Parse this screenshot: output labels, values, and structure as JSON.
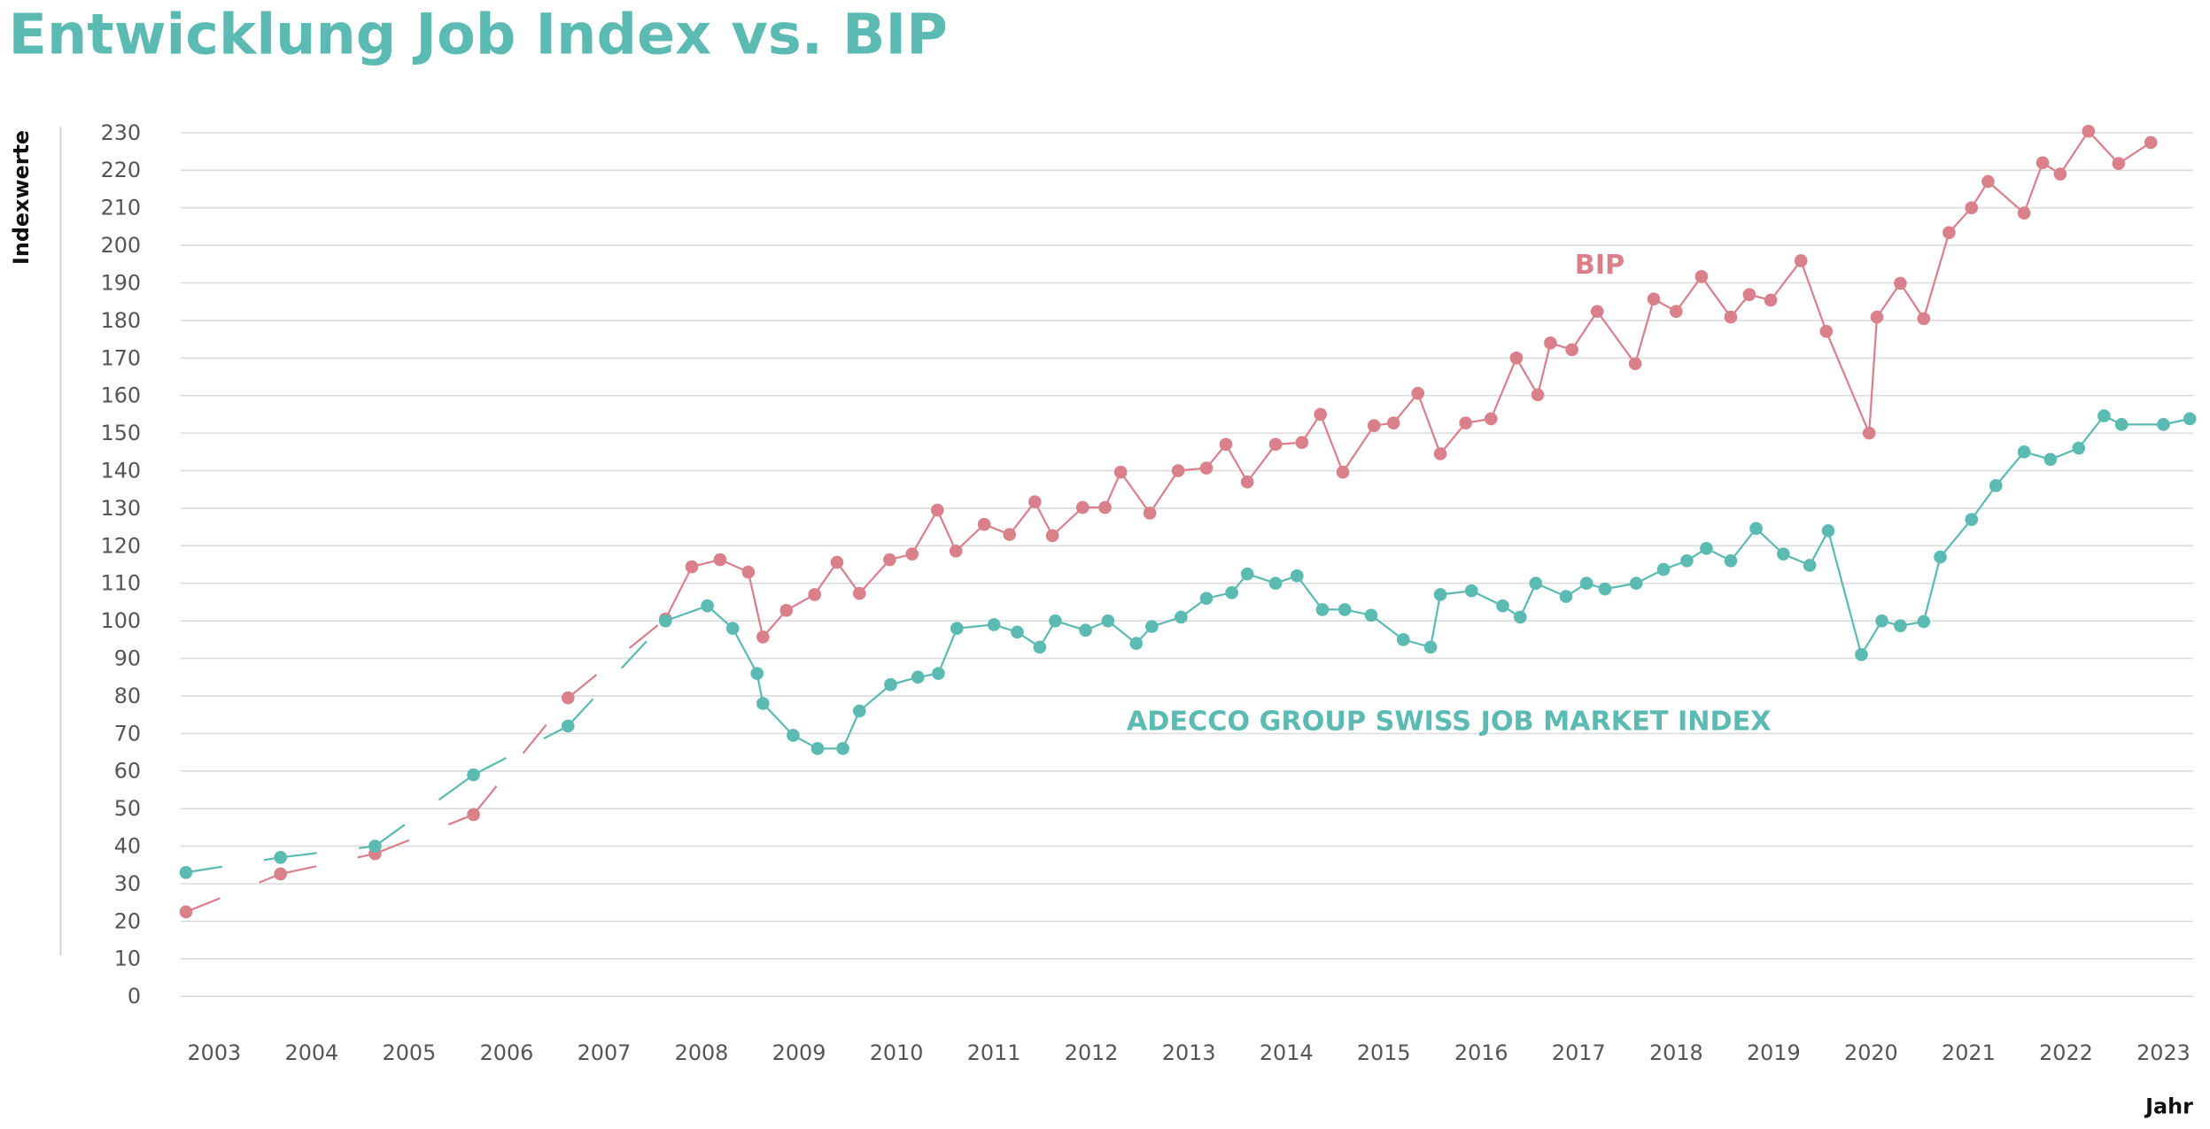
{
  "chart_data": {
    "type": "line",
    "title": "Entwicklung Job Index vs. BIP",
    "ylabel": "Indexwerte",
    "xlabel": "Jahr",
    "ylim": [
      0,
      230
    ],
    "yticks": [
      0,
      10,
      20,
      30,
      40,
      50,
      60,
      70,
      80,
      90,
      100,
      110,
      120,
      130,
      140,
      150,
      160,
      170,
      180,
      190,
      200,
      210,
      220,
      230
    ],
    "xticks": [
      "2003",
      "2004",
      "2005",
      "2006",
      "2007",
      "2008",
      "2009",
      "2010",
      "2011",
      "2012",
      "2013",
      "2014",
      "2015",
      "2016",
      "2017",
      "2018",
      "2019",
      "2020",
      "2021",
      "2022",
      "2023"
    ],
    "grid": true,
    "series": [
      {
        "name": "BIP",
        "color": "#d9808a",
        "dashed_until_year": 2007.63,
        "x": [
          2002.71,
          2003.68,
          2004.65,
          2005.66,
          2006.63,
          2007.63,
          2007.9,
          2008.19,
          2008.48,
          2008.63,
          2008.87,
          2009.16,
          2009.39,
          2009.62,
          2009.93,
          2010.16,
          2010.42,
          2010.61,
          2010.9,
          2011.16,
          2011.42,
          2011.6,
          2011.91,
          2012.14,
          2012.3,
          2012.6,
          2012.89,
          2013.18,
          2013.38,
          2013.6,
          2013.89,
          2014.16,
          2014.35,
          2014.58,
          2014.9,
          2015.1,
          2015.35,
          2015.58,
          2015.84,
          2016.1,
          2016.36,
          2016.58,
          2016.71,
          2016.93,
          2017.19,
          2017.58,
          2017.77,
          2018.0,
          2018.26,
          2018.56,
          2018.75,
          2018.97,
          2019.28,
          2019.54,
          2019.98,
          2020.06,
          2020.3,
          2020.54,
          2020.8,
          2021.03,
          2021.2,
          2021.57,
          2021.76,
          2021.94,
          2022.23,
          2022.54,
          2022.87
        ],
        "y": [
          22.5,
          32.6,
          38,
          48.4,
          79.5,
          100.5,
          114.4,
          116.3,
          113,
          95.7,
          102.8,
          107,
          115.6,
          107.3,
          116.3,
          117.8,
          129.5,
          118.6,
          125.7,
          123,
          131.7,
          122.7,
          130.2,
          130.2,
          139.6,
          128.7,
          140,
          140.7,
          147,
          137,
          147,
          147.5,
          155,
          139.6,
          152,
          152.7,
          160.6,
          144.5,
          152.7,
          153.8,
          170,
          160.2,
          174,
          172.2,
          182.4,
          168.5,
          185.7,
          182.4,
          191.7,
          180.9,
          186.9,
          185.4,
          195.9,
          177.1,
          150,
          180.9,
          189.9,
          180.5,
          203.4,
          210,
          217,
          208.6,
          222,
          219,
          230.4,
          221.8,
          227.4
        ]
      },
      {
        "name": "ADECCO GROUP SWISS JOB MARKET INDEX",
        "color": "#5bbab1",
        "dashed_until_year": 2007.63,
        "x": [
          2002.71,
          2003.68,
          2004.65,
          2005.66,
          2006.63,
          2007.63,
          2008.06,
          2008.32,
          2008.57,
          2008.63,
          2008.94,
          2009.19,
          2009.45,
          2009.62,
          2009.94,
          2010.22,
          2010.43,
          2010.62,
          2011.0,
          2011.24,
          2011.47,
          2011.63,
          2011.94,
          2012.17,
          2012.46,
          2012.62,
          2012.92,
          2013.18,
          2013.44,
          2013.6,
          2013.89,
          2014.11,
          2014.37,
          2014.6,
          2014.87,
          2015.2,
          2015.48,
          2015.58,
          2015.9,
          2016.22,
          2016.4,
          2016.56,
          2016.87,
          2017.08,
          2017.27,
          2017.59,
          2017.87,
          2018.11,
          2018.31,
          2018.56,
          2018.82,
          2019.1,
          2019.37,
          2019.56,
          2019.9,
          2020.11,
          2020.3,
          2020.54,
          2020.71,
          2021.03,
          2021.28,
          2021.57,
          2021.84,
          2022.13,
          2022.39,
          2022.57,
          2023.0,
          2023.27
        ],
        "y": [
          33,
          37,
          40,
          59,
          72,
          100,
          104,
          98,
          86,
          78,
          69.5,
          66,
          66,
          76,
          83,
          85,
          86,
          98,
          99,
          97,
          93,
          100,
          97.5,
          100,
          94,
          98.5,
          101,
          106,
          107.5,
          112.5,
          110,
          112,
          103,
          103,
          101.5,
          95,
          93,
          107,
          108,
          104,
          101,
          110,
          106.5,
          110,
          108.5,
          110,
          113.7,
          116,
          119.3,
          116,
          124.6,
          117.8,
          114.8,
          124,
          91,
          100,
          98.7,
          99.8,
          117,
          127,
          136,
          145,
          143,
          146,
          154.6,
          152.3,
          152.3,
          153.8
        ]
      }
    ]
  }
}
